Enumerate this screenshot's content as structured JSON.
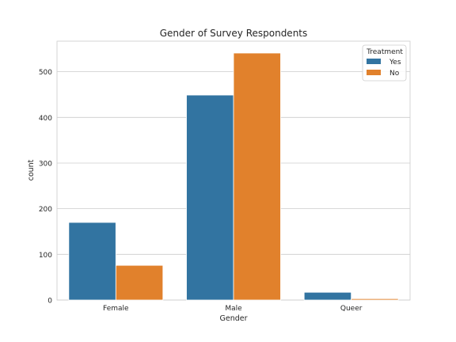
{
  "chart_data": {
    "type": "bar",
    "title": "Gender of Survey Respondents",
    "xlabel": "Gender",
    "ylabel": "count",
    "categories": [
      "Female",
      "Male",
      "Queer"
    ],
    "series": [
      {
        "name": "Yes",
        "color": "#3274a1",
        "values": [
          170,
          449,
          17
        ]
      },
      {
        "name": "No",
        "color": "#e1812c",
        "values": [
          76,
          541,
          3
        ]
      }
    ],
    "ylim": [
      0,
      567
    ],
    "yticks": [
      "0",
      "100",
      "200",
      "300",
      "400",
      "500"
    ],
    "grid": true,
    "legend": {
      "title": "Treatment",
      "position": "top-right"
    }
  }
}
